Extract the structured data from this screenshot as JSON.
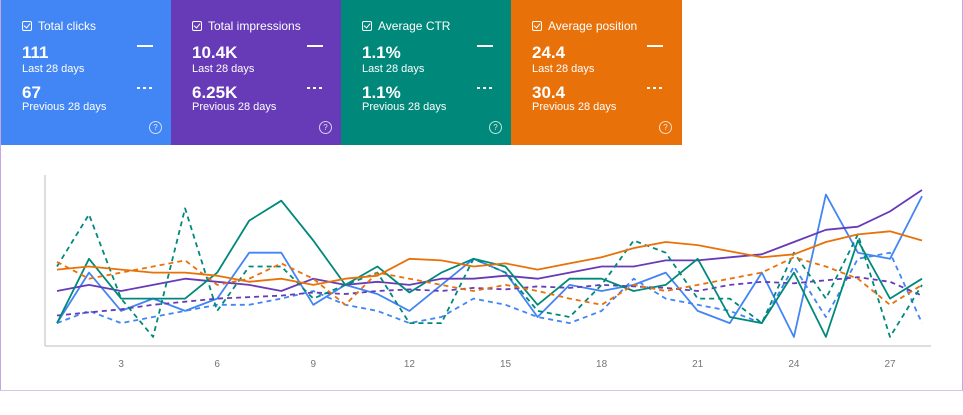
{
  "cards": [
    {
      "title": "Total clicks",
      "value": "111",
      "value_period": "Last 28 days",
      "prev_value": "67",
      "prev_period": "Previous 28 days",
      "color": "#4285f4"
    },
    {
      "title": "Total impressions",
      "value": "10.4K",
      "value_period": "Last 28 days",
      "prev_value": "6.25K",
      "prev_period": "Previous 28 days",
      "color": "#673ab7"
    },
    {
      "title": "Average CTR",
      "value": "1.1%",
      "value_period": "Last 28 days",
      "prev_value": "1.1%",
      "prev_period": "Previous 28 days",
      "color": "#00897b"
    },
    {
      "title": "Average position",
      "value": "24.4",
      "value_period": "Last 28 days",
      "prev_value": "30.4",
      "prev_period": "Previous 28 days",
      "color": "#e8710a"
    }
  ],
  "help_glyph": "?",
  "chart_data": {
    "type": "line",
    "x": [
      1,
      2,
      3,
      4,
      5,
      6,
      7,
      8,
      9,
      10,
      11,
      12,
      13,
      14,
      15,
      16,
      17,
      18,
      19,
      20,
      21,
      22,
      23,
      24,
      25,
      26,
      27,
      28
    ],
    "xticks": [
      3,
      6,
      9,
      12,
      15,
      18,
      21,
      24,
      27
    ],
    "ylim": [
      0,
      1
    ],
    "grid": false,
    "legend": "top cards",
    "series": [
      {
        "metric": "Total clicks",
        "period": "Last 28 days",
        "color": "#4285f4",
        "dashed": false,
        "values": [
          0.13,
          0.46,
          0.21,
          0.29,
          0.21,
          0.29,
          0.59,
          0.59,
          0.25,
          0.38,
          0.32,
          0.21,
          0.38,
          0.55,
          0.46,
          0.17,
          0.38,
          0.34,
          0.38,
          0.46,
          0.21,
          0.13,
          0.46,
          0.04,
          0.97,
          0.59,
          0.55,
          0.96
        ]
      },
      {
        "metric": "Total clicks",
        "period": "Previous 28 days",
        "color": "#4285f4",
        "dashed": true,
        "values": [
          0.13,
          0.21,
          0.13,
          0.17,
          0.21,
          0.25,
          0.25,
          0.29,
          0.34,
          0.25,
          0.21,
          0.13,
          0.17,
          0.29,
          0.25,
          0.17,
          0.13,
          0.21,
          0.42,
          0.29,
          0.25,
          0.21,
          0.13,
          0.5,
          0.17,
          0.55,
          0.59,
          0.13
        ]
      },
      {
        "metric": "Total impressions",
        "period": "Last 28 days",
        "color": "#673ab7",
        "dashed": false,
        "values": [
          0.34,
          0.38,
          0.34,
          0.38,
          0.42,
          0.4,
          0.38,
          0.34,
          0.42,
          0.38,
          0.4,
          0.38,
          0.42,
          0.42,
          0.44,
          0.42,
          0.46,
          0.5,
          0.5,
          0.54,
          0.54,
          0.56,
          0.58,
          0.66,
          0.74,
          0.76,
          0.86,
          1.0
        ]
      },
      {
        "metric": "Total impressions",
        "period": "Previous 28 days",
        "color": "#673ab7",
        "dashed": true,
        "values": [
          0.18,
          0.2,
          0.22,
          0.25,
          0.27,
          0.29,
          0.3,
          0.31,
          0.33,
          0.32,
          0.34,
          0.35,
          0.34,
          0.36,
          0.35,
          0.37,
          0.36,
          0.38,
          0.37,
          0.36,
          0.34,
          0.38,
          0.4,
          0.39,
          0.41,
          0.43,
          0.4,
          0.31
        ]
      },
      {
        "metric": "Average CTR",
        "period": "Last 28 days",
        "color": "#00897b",
        "dashed": false,
        "values": [
          0.13,
          0.55,
          0.29,
          0.29,
          0.29,
          0.46,
          0.8,
          0.93,
          0.67,
          0.38,
          0.5,
          0.33,
          0.46,
          0.55,
          0.5,
          0.25,
          0.42,
          0.42,
          0.34,
          0.38,
          0.55,
          0.17,
          0.13,
          0.46,
          0.04,
          0.67,
          0.29,
          0.42
        ]
      },
      {
        "metric": "Average CTR",
        "period": "Previous 28 days",
        "color": "#00897b",
        "dashed": true,
        "values": [
          0.5,
          0.84,
          0.29,
          0.04,
          0.88,
          0.21,
          0.5,
          0.5,
          0.29,
          0.38,
          0.46,
          0.13,
          0.13,
          0.55,
          0.46,
          0.21,
          0.17,
          0.38,
          0.67,
          0.59,
          0.29,
          0.29,
          0.13,
          0.59,
          0.29,
          0.71,
          0.04,
          0.38
        ]
      },
      {
        "metric": "Average position",
        "period": "Last 28 days",
        "color": "#e8710a",
        "dashed": false,
        "values": [
          0.48,
          0.5,
          0.48,
          0.46,
          0.46,
          0.44,
          0.4,
          0.42,
          0.38,
          0.42,
          0.44,
          0.55,
          0.54,
          0.5,
          0.52,
          0.48,
          0.52,
          0.56,
          0.62,
          0.66,
          0.64,
          0.6,
          0.56,
          0.58,
          0.66,
          0.71,
          0.73,
          0.67
        ]
      },
      {
        "metric": "Average position",
        "period": "Previous 28 days",
        "color": "#e8710a",
        "dashed": true,
        "values": [
          0.53,
          0.42,
          0.46,
          0.5,
          0.54,
          0.38,
          0.42,
          0.52,
          0.42,
          0.25,
          0.46,
          0.42,
          0.38,
          0.34,
          0.38,
          0.34,
          0.29,
          0.25,
          0.38,
          0.34,
          0.38,
          0.42,
          0.46,
          0.56,
          0.5,
          0.42,
          0.25,
          0.38
        ]
      }
    ]
  }
}
